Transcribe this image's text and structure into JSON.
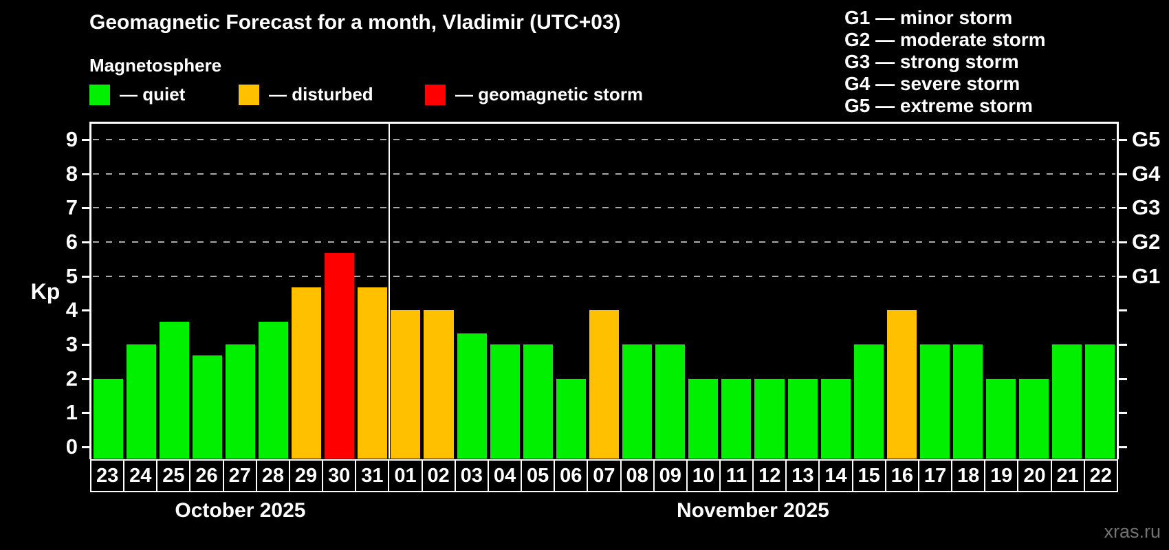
{
  "header": {
    "title": "Geomagnetic Forecast for a month, Vladimir (UTC+03)",
    "subtitle": "Magnetosphere"
  },
  "legend": {
    "items": [
      {
        "status": "quiet",
        "label": "— quiet"
      },
      {
        "status": "disturbed",
        "label": "— disturbed"
      },
      {
        "status": "storm",
        "label": "— geomagnetic storm"
      }
    ]
  },
  "storm_scale_legend": {
    "items": [
      "G1 — minor storm",
      "G2 — moderate storm",
      "G3 — strong storm",
      "G4 — severe storm",
      "G5 — extreme storm"
    ]
  },
  "colors": {
    "quiet": "#00f000",
    "disturbed": "#ffc000",
    "storm": "#ff0000",
    "grid": "#a9a9a9",
    "axis": "#ffffff"
  },
  "watermark": "xras.ru",
  "chart_data": {
    "type": "bar",
    "title": "Geomagnetic Forecast for a month, Vladimir (UTC+03)",
    "ylabel": "Kp",
    "ylim": [
      0,
      9
    ],
    "y_ticks": [
      0,
      1,
      2,
      3,
      4,
      5,
      6,
      7,
      8,
      9
    ],
    "gridlines_at": [
      5,
      6,
      7,
      8,
      9
    ],
    "right_axis": [
      {
        "level": 5,
        "label": "G1"
      },
      {
        "level": 6,
        "label": "G2"
      },
      {
        "level": 7,
        "label": "G3"
      },
      {
        "level": 8,
        "label": "G4"
      },
      {
        "level": 9,
        "label": "G5"
      }
    ],
    "x_groups": [
      {
        "label": "October 2025",
        "count": 9
      },
      {
        "label": "November 2025",
        "count": 22
      }
    ],
    "categories": [
      "23",
      "24",
      "25",
      "26",
      "27",
      "28",
      "29",
      "30",
      "31",
      "01",
      "02",
      "03",
      "04",
      "05",
      "06",
      "07",
      "08",
      "09",
      "10",
      "11",
      "12",
      "13",
      "14",
      "15",
      "16",
      "17",
      "18",
      "19",
      "20",
      "21",
      "22"
    ],
    "values": [
      2,
      3,
      3.67,
      2.67,
      3,
      3.67,
      4.67,
      5.67,
      4.67,
      4,
      4,
      3.33,
      3,
      3,
      2,
      4,
      3,
      3,
      2,
      2,
      2,
      2,
      2,
      3,
      4,
      3,
      3,
      2,
      2,
      3,
      3
    ],
    "statuses": [
      "quiet",
      "quiet",
      "quiet",
      "quiet",
      "quiet",
      "quiet",
      "disturbed",
      "storm",
      "disturbed",
      "disturbed",
      "disturbed",
      "quiet",
      "quiet",
      "quiet",
      "quiet",
      "disturbed",
      "quiet",
      "quiet",
      "quiet",
      "quiet",
      "quiet",
      "quiet",
      "quiet",
      "quiet",
      "disturbed",
      "quiet",
      "quiet",
      "quiet",
      "quiet",
      "quiet",
      "quiet"
    ]
  }
}
